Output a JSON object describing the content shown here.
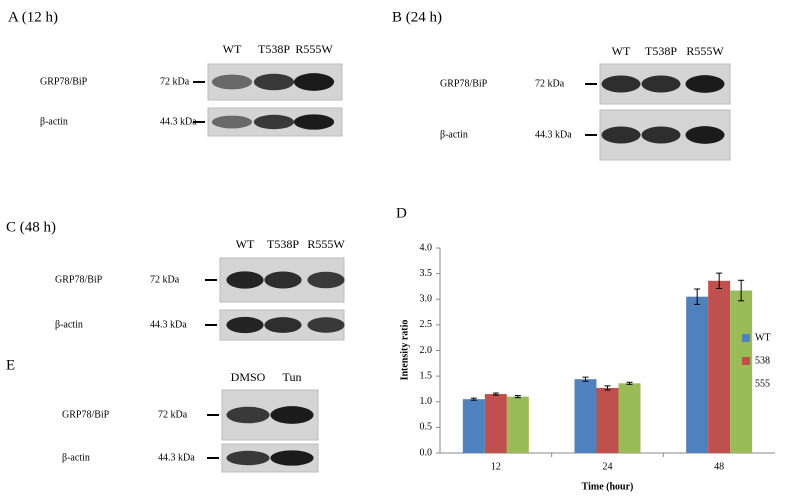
{
  "blots": [
    {
      "label": "A (12 h)",
      "lanes": [
        "WT",
        "T538P",
        "R555W"
      ],
      "rows": [
        {
          "protein": "GRP78/BiP",
          "marker": "72 kDa"
        },
        {
          "protein": "β-actin",
          "marker": "44.3 kDa"
        }
      ]
    },
    {
      "label": "B (24 h)",
      "lanes": [
        "WT",
        "T538P",
        "R555W"
      ],
      "rows": [
        {
          "protein": "GRP78/BiP",
          "marker": "72 kDa"
        },
        {
          "protein": "β-actin",
          "marker": "44.3 kDa"
        }
      ]
    },
    {
      "label": "C (48 h)",
      "lanes": [
        "WT",
        "T538P",
        "R555W"
      ],
      "rows": [
        {
          "protein": "GRP78/BiP",
          "marker": "72 kDa"
        },
        {
          "protein": "β-actin",
          "marker": "44.3 kDa"
        }
      ]
    },
    {
      "label": "E",
      "lanes": [
        "DMSO",
        "Tun"
      ],
      "rows": [
        {
          "protein": "GRP78/BiP",
          "marker": "72 kDa"
        },
        {
          "protein": "β-actin",
          "marker": "44.3 kDa"
        }
      ]
    }
  ],
  "chart_data": {
    "type": "bar",
    "panel_label": "D",
    "x_label": "Time (hour)",
    "y_label": "Intensity ratio",
    "categories": [
      "12",
      "24",
      "48"
    ],
    "series": [
      {
        "name": "WT",
        "color": "#4f81bd",
        "values": [
          1.05,
          1.44,
          3.05
        ],
        "errors": [
          0.02,
          0.04,
          0.15
        ]
      },
      {
        "name": "538",
        "color": "#c0504d",
        "values": [
          1.15,
          1.27,
          3.36
        ],
        "errors": [
          0.02,
          0.04,
          0.15
        ]
      },
      {
        "name": "555",
        "color": "#9bbb59",
        "values": [
          1.1,
          1.36,
          3.17
        ],
        "errors": [
          0.02,
          0.02,
          0.2
        ]
      }
    ],
    "ylim": [
      0,
      4
    ],
    "yticks": [
      {
        "value": 0,
        "label": "0.0"
      },
      0.5,
      {
        "value": 1,
        "label": "1.0"
      },
      1.5,
      {
        "value": 2,
        "label": "2.0"
      },
      2.5,
      {
        "value": 3,
        "label": "3.0"
      },
      3.5,
      {
        "value": 4,
        "label": "4.0"
      }
    ],
    "legend": "right"
  }
}
